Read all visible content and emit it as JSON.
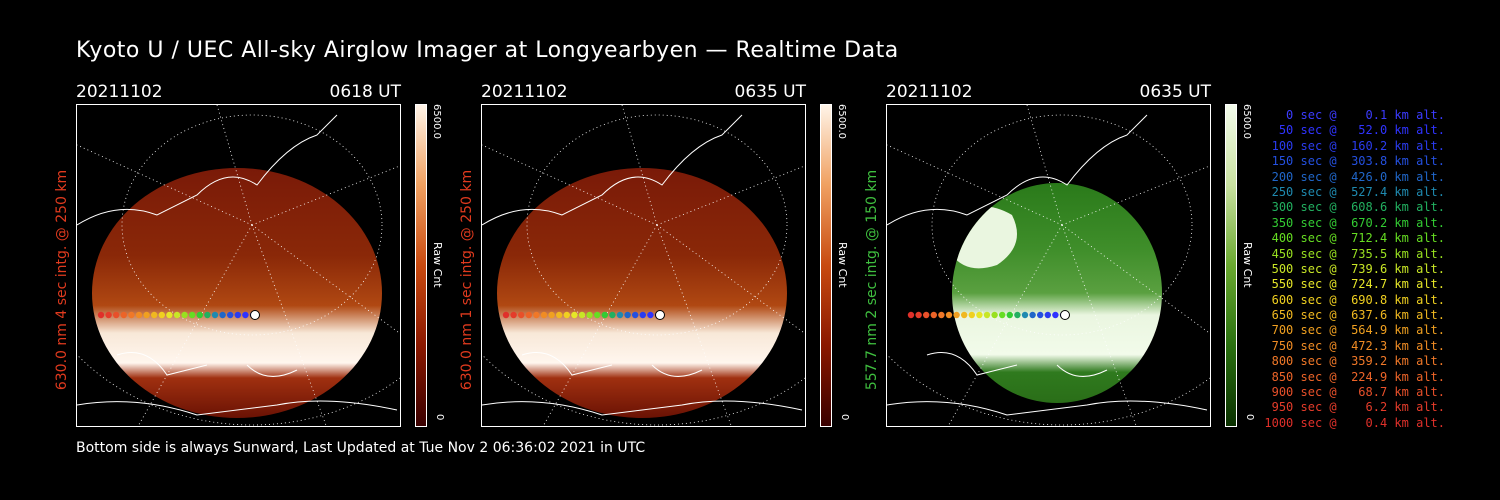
{
  "title": "Kyoto U / UEC All-sky Airglow Imager at Longyearbyen — Realtime Data",
  "footer": "Bottom side is always Sunward, Last Updated at Tue Nov  2 06:36:02 2021 in UTC",
  "panels": [
    {
      "date": "20211102",
      "time": "0618 UT",
      "ylabel": "630.0 nm 4 sec intg. @ 250 km",
      "colorbar_max": "6500.0",
      "colorbar_min": "0",
      "colorbar_unit": "Raw Cnt",
      "theme": "red",
      "label_color": "#e03a1e",
      "intensity": 1.0
    },
    {
      "date": "20211102",
      "time": "0635 UT",
      "ylabel": "630.0 nm 1 sec intg. @ 250 km",
      "colorbar_max": "6500.0",
      "colorbar_min": "0",
      "colorbar_unit": "Raw Cnt",
      "theme": "red",
      "label_color": "#e03a1e",
      "intensity": 0.95
    },
    {
      "date": "20211102",
      "time": "0635 UT",
      "ylabel": "557.7 nm 2 sec intg. @ 150 km",
      "colorbar_max": "6500.0",
      "colorbar_min": "0",
      "colorbar_unit": "Raw Cnt",
      "theme": "green",
      "label_color": "#3fbf3f",
      "intensity": 1.0
    }
  ],
  "legend": [
    {
      "text": "0 sec @    0.1 km alt.",
      "color": "#3b3bff"
    },
    {
      "text": "50 sec @   52.0 km alt.",
      "color": "#2f33ff"
    },
    {
      "text": "100 sec @  160.2 km alt.",
      "color": "#2a3cf0"
    },
    {
      "text": "150 sec @  303.8 km alt.",
      "color": "#2450e0"
    },
    {
      "text": "200 sec @  426.0 km alt.",
      "color": "#2066c8"
    },
    {
      "text": "250 sec @  527.4 km alt.",
      "color": "#1f8ab0"
    },
    {
      "text": "300 sec @  608.6 km alt.",
      "color": "#22b060"
    },
    {
      "text": "350 sec @  670.2 km alt.",
      "color": "#33cc33"
    },
    {
      "text": "400 sec @  712.4 km alt.",
      "color": "#66dd22"
    },
    {
      "text": "450 sec @  735.5 km alt.",
      "color": "#99e020"
    },
    {
      "text": "500 sec @  739.6 km alt.",
      "color": "#c8e626"
    },
    {
      "text": "550 sec @  724.7 km alt.",
      "color": "#e6e628"
    },
    {
      "text": "600 sec @  690.8 km alt.",
      "color": "#f0d020"
    },
    {
      "text": "650 sec @  637.6 km alt.",
      "color": "#f0b820"
    },
    {
      "text": "700 sec @  564.9 km alt.",
      "color": "#f0a020"
    },
    {
      "text": "750 sec @  472.3 km alt.",
      "color": "#f08c24"
    },
    {
      "text": "800 sec @  359.2 km alt.",
      "color": "#f07828"
    },
    {
      "text": "850 sec @  224.9 km alt.",
      "color": "#ec6428"
    },
    {
      "text": "900 sec @   68.7 km alt.",
      "color": "#e8502a"
    },
    {
      "text": "950 sec @    6.2 km alt.",
      "color": "#e43c2a"
    },
    {
      "text": "1000 sec @    0.4 km alt.",
      "color": "#e0302a"
    }
  ]
}
